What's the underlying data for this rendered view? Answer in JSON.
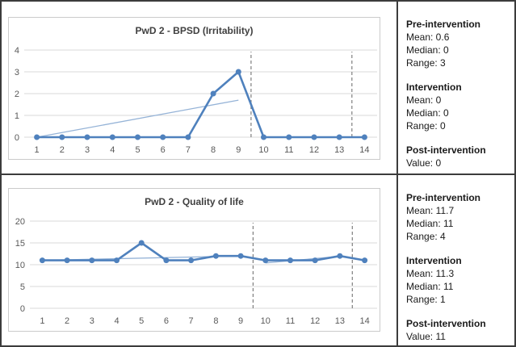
{
  "figure": {
    "colors": {
      "line": "#4f81bd",
      "trend": "#95b3d7",
      "phase_line": "#7f7f7f",
      "grid": "#d9d9d9",
      "tick_label": "#595959",
      "title": "#404040",
      "outer_border": "#3c3c3c",
      "chart_box_border": "#cbcbcb"
    }
  },
  "chart_data": [
    {
      "type": "line",
      "title": "PwD 2 - BPSD (Irritability)",
      "x": [
        1,
        2,
        3,
        4,
        5,
        6,
        7,
        8,
        9,
        10,
        11,
        12,
        13,
        14
      ],
      "series": [
        {
          "name": "irritability-score",
          "style": "main",
          "values": [
            0,
            0,
            0,
            0,
            0,
            0,
            0,
            2,
            3,
            0,
            0,
            0,
            0,
            0
          ]
        },
        {
          "name": "pre-intervention-trend",
          "style": "trend",
          "x": [
            1,
            9
          ],
          "values": [
            0,
            1.7
          ]
        }
      ],
      "phase_lines_x": [
        9.5,
        13.5
      ],
      "ylim": [
        0,
        4
      ],
      "yticks": [
        0,
        1,
        2,
        3,
        4
      ],
      "grid": true,
      "legend": "none"
    },
    {
      "type": "line",
      "title": "PwD 2 - Quality of life",
      "x": [
        1,
        2,
        3,
        4,
        5,
        6,
        7,
        8,
        9,
        10,
        11,
        12,
        13,
        14
      ],
      "series": [
        {
          "name": "quality-of-life-score",
          "style": "main",
          "values": [
            11,
            11,
            11,
            11,
            15,
            11,
            11,
            12,
            12,
            11,
            11,
            11,
            12,
            11
          ]
        },
        {
          "name": "pre-intervention-trend",
          "style": "trend",
          "x": [
            1,
            9
          ],
          "values": [
            11,
            12
          ]
        },
        {
          "name": "intervention-trend",
          "style": "trend",
          "x": [
            10,
            13
          ],
          "values": [
            10.4,
            11.9
          ]
        }
      ],
      "phase_lines_x": [
        9.5,
        13.5
      ],
      "ylim": [
        0,
        20
      ],
      "yticks": [
        0,
        5,
        10,
        15,
        20
      ],
      "grid": true,
      "legend": "none"
    }
  ],
  "stats_panels": [
    {
      "sections": [
        {
          "heading": "Pre-intervention",
          "lines": [
            "Mean: 0.6",
            "Median: 0",
            "Range: 3"
          ]
        },
        {
          "heading": "Intervention",
          "lines": [
            "Mean: 0",
            "Median: 0",
            "Range: 0"
          ]
        },
        {
          "heading": "Post-intervention",
          "lines": [
            "Value: 0"
          ]
        }
      ]
    },
    {
      "sections": [
        {
          "heading": "Pre-intervention",
          "lines": [
            "Mean: 11.7",
            "Median: 11",
            "Range: 4"
          ]
        },
        {
          "heading": "Intervention",
          "lines": [
            "Mean: 11.3",
            "Median: 11",
            "Range: 1"
          ]
        },
        {
          "heading": "Post-intervention",
          "lines": [
            "Value: 11"
          ]
        }
      ]
    }
  ]
}
